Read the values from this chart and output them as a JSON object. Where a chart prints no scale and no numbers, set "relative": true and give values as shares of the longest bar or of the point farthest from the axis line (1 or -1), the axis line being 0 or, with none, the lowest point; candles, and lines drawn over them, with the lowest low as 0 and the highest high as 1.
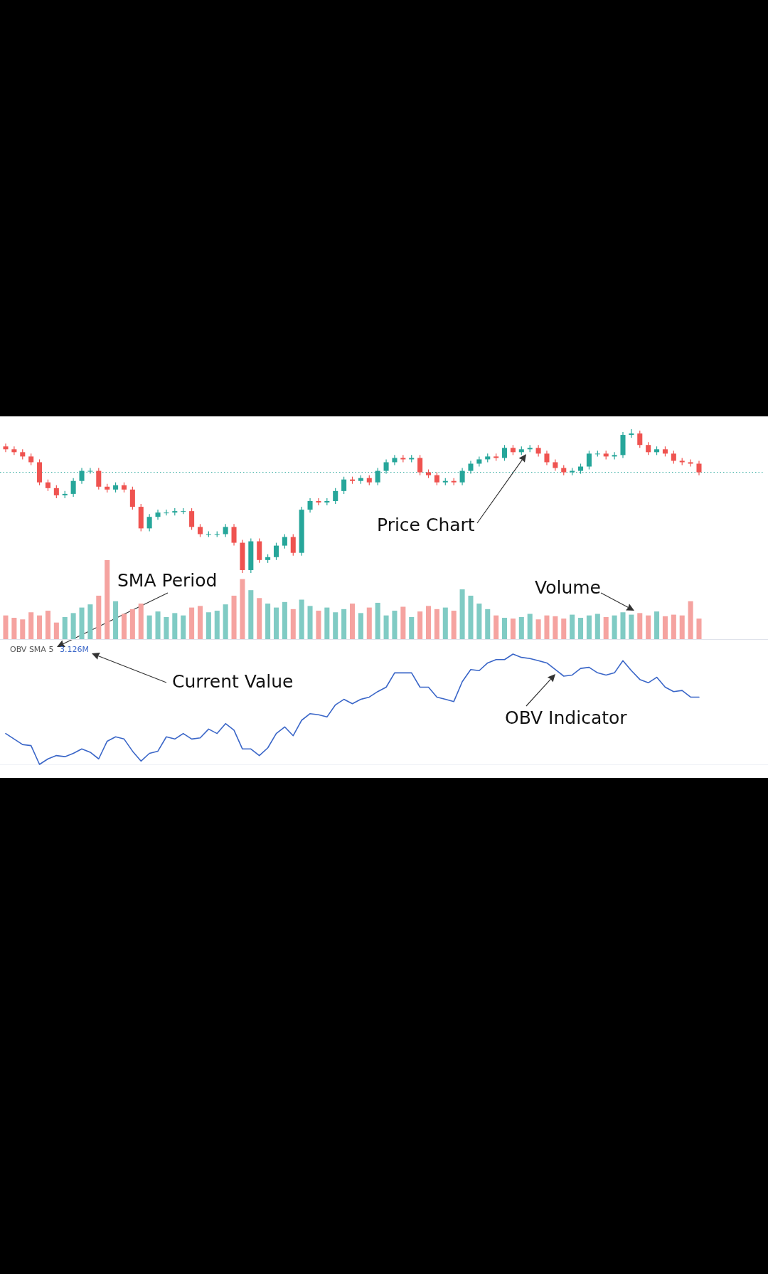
{
  "chart_data": [
    {
      "type": "candlestick",
      "relative": true,
      "categories": [
        null,
        null,
        null,
        null,
        null,
        null,
        null,
        null,
        null,
        null,
        null,
        null,
        null,
        null,
        null,
        null,
        null,
        null,
        null,
        null,
        null,
        null,
        null,
        null,
        null,
        null,
        null,
        null,
        null,
        null,
        null,
        null,
        null,
        null,
        null,
        null,
        null,
        null,
        null,
        null,
        null,
        null,
        null,
        null,
        null,
        null,
        null,
        null,
        null,
        null,
        null,
        null,
        null,
        null,
        null,
        null,
        null,
        null,
        null,
        null,
        null,
        null,
        null,
        null,
        null,
        null,
        null,
        null,
        null,
        null,
        null,
        null,
        null,
        null,
        null,
        null,
        null,
        null,
        null,
        null,
        null,
        null,
        null
      ],
      "ohlc": [
        [
          0.88,
          0.9,
          0.84,
          0.86
        ],
        [
          0.86,
          0.88,
          0.82,
          0.84
        ],
        [
          0.84,
          0.86,
          0.79,
          0.81
        ],
        [
          0.81,
          0.83,
          0.75,
          0.77
        ],
        [
          0.77,
          0.79,
          0.61,
          0.63
        ],
        [
          0.63,
          0.65,
          0.57,
          0.59
        ],
        [
          0.59,
          0.61,
          0.52,
          0.54
        ],
        [
          0.54,
          0.57,
          0.52,
          0.55
        ],
        [
          0.55,
          0.66,
          0.53,
          0.64
        ],
        [
          0.64,
          0.73,
          0.62,
          0.71
        ],
        [
          0.71,
          0.73,
          0.69,
          0.71
        ],
        [
          0.71,
          0.73,
          0.58,
          0.6
        ],
        [
          0.6,
          0.62,
          0.56,
          0.58
        ],
        [
          0.58,
          0.63,
          0.56,
          0.61
        ],
        [
          0.61,
          0.63,
          0.56,
          0.58
        ],
        [
          0.58,
          0.6,
          0.44,
          0.46
        ],
        [
          0.46,
          0.48,
          0.29,
          0.31
        ],
        [
          0.31,
          0.41,
          0.29,
          0.39
        ],
        [
          0.39,
          0.44,
          0.37,
          0.42
        ],
        [
          0.42,
          0.44,
          0.4,
          0.42
        ],
        [
          0.42,
          0.45,
          0.4,
          0.43
        ],
        [
          0.43,
          0.45,
          0.41,
          0.43
        ],
        [
          0.43,
          0.45,
          0.3,
          0.32
        ],
        [
          0.32,
          0.34,
          0.25,
          0.27
        ],
        [
          0.27,
          0.29,
          0.25,
          0.27
        ],
        [
          0.27,
          0.29,
          0.25,
          0.27
        ],
        [
          0.27,
          0.34,
          0.25,
          0.32
        ],
        [
          0.32,
          0.34,
          0.19,
          0.21
        ],
        [
          0.21,
          0.23,
          0.0,
          0.02
        ],
        [
          0.02,
          0.24,
          0.0,
          0.22
        ],
        [
          0.22,
          0.24,
          0.07,
          0.09
        ],
        [
          0.09,
          0.13,
          0.07,
          0.11
        ],
        [
          0.11,
          0.21,
          0.09,
          0.19
        ],
        [
          0.19,
          0.27,
          0.17,
          0.25
        ],
        [
          0.25,
          0.27,
          0.12,
          0.14
        ],
        [
          0.14,
          0.46,
          0.12,
          0.44
        ],
        [
          0.44,
          0.52,
          0.42,
          0.5
        ],
        [
          0.5,
          0.52,
          0.47,
          0.49
        ],
        [
          0.49,
          0.52,
          0.47,
          0.5
        ],
        [
          0.5,
          0.59,
          0.48,
          0.57
        ],
        [
          0.57,
          0.67,
          0.55,
          0.65
        ],
        [
          0.65,
          0.67,
          0.62,
          0.64
        ],
        [
          0.64,
          0.68,
          0.62,
          0.66
        ],
        [
          0.66,
          0.68,
          0.61,
          0.63
        ],
        [
          0.63,
          0.73,
          0.61,
          0.71
        ],
        [
          0.71,
          0.79,
          0.69,
          0.77
        ],
        [
          0.77,
          0.82,
          0.75,
          0.8
        ],
        [
          0.8,
          0.82,
          0.77,
          0.79
        ],
        [
          0.79,
          0.82,
          0.77,
          0.8
        ],
        [
          0.8,
          0.82,
          0.68,
          0.7
        ],
        [
          0.7,
          0.72,
          0.66,
          0.68
        ],
        [
          0.68,
          0.7,
          0.61,
          0.63
        ],
        [
          0.63,
          0.66,
          0.61,
          0.64
        ],
        [
          0.64,
          0.66,
          0.61,
          0.63
        ],
        [
          0.63,
          0.73,
          0.61,
          0.71
        ],
        [
          0.71,
          0.78,
          0.69,
          0.76
        ],
        [
          0.76,
          0.81,
          0.74,
          0.79
        ],
        [
          0.79,
          0.83,
          0.77,
          0.81
        ],
        [
          0.81,
          0.83,
          0.78,
          0.8
        ],
        [
          0.8,
          0.89,
          0.78,
          0.87
        ],
        [
          0.87,
          0.89,
          0.82,
          0.84
        ],
        [
          0.84,
          0.88,
          0.82,
          0.86
        ],
        [
          0.86,
          0.89,
          0.84,
          0.87
        ],
        [
          0.87,
          0.89,
          0.81,
          0.83
        ],
        [
          0.83,
          0.85,
          0.75,
          0.77
        ],
        [
          0.77,
          0.79,
          0.71,
          0.73
        ],
        [
          0.73,
          0.75,
          0.68,
          0.7
        ],
        [
          0.7,
          0.73,
          0.68,
          0.71
        ],
        [
          0.71,
          0.76,
          0.69,
          0.74
        ],
        [
          0.74,
          0.85,
          0.72,
          0.83
        ],
        [
          0.83,
          0.85,
          0.81,
          0.83
        ],
        [
          0.83,
          0.85,
          0.79,
          0.81
        ],
        [
          0.81,
          0.84,
          0.79,
          0.82
        ],
        [
          0.82,
          0.98,
          0.8,
          0.96
        ],
        [
          0.96,
          1.0,
          0.94,
          0.97
        ],
        [
          0.97,
          0.99,
          0.87,
          0.89
        ],
        [
          0.89,
          0.91,
          0.82,
          0.84
        ],
        [
          0.84,
          0.88,
          0.82,
          0.86
        ],
        [
          0.86,
          0.88,
          0.81,
          0.83
        ],
        [
          0.83,
          0.85,
          0.76,
          0.78
        ],
        [
          0.78,
          0.8,
          0.75,
          0.77
        ],
        [
          0.77,
          0.79,
          0.74,
          0.76
        ],
        [
          0.76,
          0.78,
          0.68,
          0.7
        ]
      ],
      "colors": [
        "#ef5350",
        "#ef5350",
        "#ef5350",
        "#ef5350",
        "#ef5350",
        "#ef5350",
        "#ef5350",
        "#26a69a",
        "#26a69a",
        "#26a69a",
        "#26a69a",
        "#ef5350",
        "#ef5350",
        "#26a69a",
        "#ef5350",
        "#ef5350",
        "#ef5350",
        "#26a69a",
        "#26a69a",
        "#26a69a",
        "#26a69a",
        "#26a69a",
        "#ef5350",
        "#ef5350",
        "#26a69a",
        "#26a69a",
        "#26a69a",
        "#ef5350",
        "#ef5350",
        "#26a69a",
        "#ef5350",
        "#26a69a",
        "#26a69a",
        "#26a69a",
        "#ef5350",
        "#26a69a",
        "#26a69a",
        "#ef5350",
        "#26a69a",
        "#26a69a",
        "#26a69a",
        "#ef5350",
        "#26a69a",
        "#ef5350",
        "#26a69a",
        "#26a69a",
        "#26a69a",
        "#ef5350",
        "#26a69a",
        "#ef5350",
        "#ef5350",
        "#ef5350",
        "#26a69a",
        "#ef5350",
        "#26a69a",
        "#26a69a",
        "#26a69a",
        "#26a69a",
        "#ef5350",
        "#26a69a",
        "#ef5350",
        "#26a69a",
        "#26a69a",
        "#ef5350",
        "#ef5350",
        "#ef5350",
        "#ef5350",
        "#26a69a",
        "#26a69a",
        "#26a69a",
        "#26a69a",
        "#ef5350",
        "#26a69a",
        "#26a69a",
        "#26a69a",
        "#ef5350",
        "#ef5350",
        "#26a69a",
        "#ef5350",
        "#ef5350",
        "#ef5350",
        "#ef5350",
        "#ef5350"
      ],
      "ref_lines": [
        {
          "axis": "y",
          "value": 0.7,
          "color": "#26a69a",
          "line_style": "dotted"
        }
      ],
      "annotations": [
        "Price Chart"
      ]
    },
    {
      "type": "bar",
      "relative": true,
      "categories": [
        null,
        null,
        null,
        null,
        null,
        null,
        null,
        null,
        null,
        null,
        null,
        null,
        null,
        null,
        null,
        null,
        null,
        null,
        null,
        null,
        null,
        null,
        null,
        null,
        null,
        null,
        null,
        null,
        null,
        null,
        null,
        null,
        null,
        null,
        null,
        null,
        null,
        null,
        null,
        null,
        null,
        null,
        null,
        null,
        null,
        null,
        null,
        null,
        null,
        null,
        null,
        null,
        null,
        null,
        null,
        null,
        null,
        null,
        null,
        null,
        null,
        null,
        null,
        null,
        null,
        null,
        null,
        null,
        null,
        null,
        null,
        null,
        null,
        null,
        null,
        null,
        null,
        null,
        null,
        null,
        null,
        null,
        null
      ],
      "values": [
        0.3,
        0.27,
        0.25,
        0.34,
        0.3,
        0.36,
        0.21,
        0.28,
        0.33,
        0.4,
        0.44,
        0.55,
        1.0,
        0.48,
        0.32,
        0.38,
        0.45,
        0.3,
        0.35,
        0.28,
        0.33,
        0.3,
        0.4,
        0.42,
        0.34,
        0.36,
        0.44,
        0.55,
        0.76,
        0.62,
        0.52,
        0.45,
        0.4,
        0.47,
        0.38,
        0.5,
        0.42,
        0.36,
        0.4,
        0.34,
        0.38,
        0.45,
        0.33,
        0.4,
        0.46,
        0.3,
        0.36,
        0.41,
        0.28,
        0.35,
        0.42,
        0.38,
        0.4,
        0.36,
        0.63,
        0.55,
        0.45,
        0.38,
        0.3,
        0.27,
        0.26,
        0.28,
        0.32,
        0.25,
        0.3,
        0.29,
        0.26,
        0.31,
        0.27,
        0.3,
        0.32,
        0.28,
        0.3,
        0.34,
        0.31,
        0.33,
        0.3,
        0.35,
        0.29,
        0.31,
        0.3,
        0.48,
        0.26
      ],
      "colors": [
        "#f5a3a0",
        "#f5a3a0",
        "#f5a3a0",
        "#f5a3a0",
        "#f5a3a0",
        "#f5a3a0",
        "#f5a3a0",
        "#80cbc4",
        "#80cbc4",
        "#80cbc4",
        "#80cbc4",
        "#f5a3a0",
        "#f5a3a0",
        "#80cbc4",
        "#f5a3a0",
        "#f5a3a0",
        "#f5a3a0",
        "#80cbc4",
        "#80cbc4",
        "#80cbc4",
        "#80cbc4",
        "#80cbc4",
        "#f5a3a0",
        "#f5a3a0",
        "#80cbc4",
        "#80cbc4",
        "#80cbc4",
        "#f5a3a0",
        "#f5a3a0",
        "#80cbc4",
        "#f5a3a0",
        "#80cbc4",
        "#80cbc4",
        "#80cbc4",
        "#f5a3a0",
        "#80cbc4",
        "#80cbc4",
        "#f5a3a0",
        "#80cbc4",
        "#80cbc4",
        "#80cbc4",
        "#f5a3a0",
        "#80cbc4",
        "#f5a3a0",
        "#80cbc4",
        "#80cbc4",
        "#80cbc4",
        "#f5a3a0",
        "#80cbc4",
        "#f5a3a0",
        "#f5a3a0",
        "#f5a3a0",
        "#80cbc4",
        "#f5a3a0",
        "#80cbc4",
        "#80cbc4",
        "#80cbc4",
        "#80cbc4",
        "#f5a3a0",
        "#80cbc4",
        "#f5a3a0",
        "#80cbc4",
        "#80cbc4",
        "#f5a3a0",
        "#f5a3a0",
        "#f5a3a0",
        "#f5a3a0",
        "#80cbc4",
        "#80cbc4",
        "#80cbc4",
        "#80cbc4",
        "#f5a3a0",
        "#80cbc4",
        "#80cbc4",
        "#80cbc4",
        "#f5a3a0",
        "#f5a3a0",
        "#80cbc4",
        "#f5a3a0",
        "#f5a3a0",
        "#f5a3a0",
        "#f5a3a0",
        "#f5a3a0"
      ],
      "annotations": [
        "Volume"
      ]
    },
    {
      "type": "line",
      "relative": true,
      "title": "OBV SMA 5",
      "subtitle": "3.126M",
      "categories": [
        null,
        null,
        null,
        null,
        null,
        null,
        null,
        null,
        null,
        null,
        null,
        null,
        null,
        null,
        null,
        null,
        null,
        null,
        null,
        null,
        null,
        null,
        null,
        null,
        null,
        null,
        null,
        null,
        null,
        null,
        null,
        null,
        null,
        null,
        null,
        null,
        null,
        null,
        null,
        null,
        null,
        null,
        null,
        null,
        null,
        null,
        null,
        null,
        null,
        null,
        null,
        null,
        null,
        null,
        null,
        null,
        null,
        null,
        null,
        null,
        null,
        null,
        null,
        null,
        null,
        null,
        null,
        null,
        null,
        null,
        null,
        null,
        null,
        null,
        null,
        null,
        null,
        null,
        null,
        null,
        null,
        null,
        null
      ],
      "values": [
        0.28,
        0.23,
        0.18,
        0.17,
        0.0,
        0.05,
        0.08,
        0.07,
        0.1,
        0.14,
        0.11,
        0.05,
        0.21,
        0.25,
        0.23,
        0.12,
        0.03,
        0.1,
        0.12,
        0.25,
        0.23,
        0.28,
        0.23,
        0.24,
        0.32,
        0.28,
        0.37,
        0.31,
        0.14,
        0.14,
        0.08,
        0.15,
        0.28,
        0.34,
        0.26,
        0.4,
        0.46,
        0.45,
        0.43,
        0.54,
        0.59,
        0.55,
        0.59,
        0.61,
        0.66,
        0.7,
        0.83,
        0.83,
        0.83,
        0.7,
        0.7,
        0.61,
        0.59,
        0.57,
        0.75,
        0.86,
        0.85,
        0.92,
        0.95,
        0.95,
        1.0,
        0.97,
        0.96,
        0.94,
        0.92,
        0.86,
        0.8,
        0.81,
        0.87,
        0.88,
        0.83,
        0.81,
        0.83,
        0.94,
        0.85,
        0.77,
        0.74,
        0.79,
        0.7,
        0.66,
        0.67,
        0.61,
        0.61
      ],
      "color": "#3a66c8",
      "annotations": [
        "SMA Period",
        "Current Value",
        "OBV Indicator"
      ]
    }
  ]
}
